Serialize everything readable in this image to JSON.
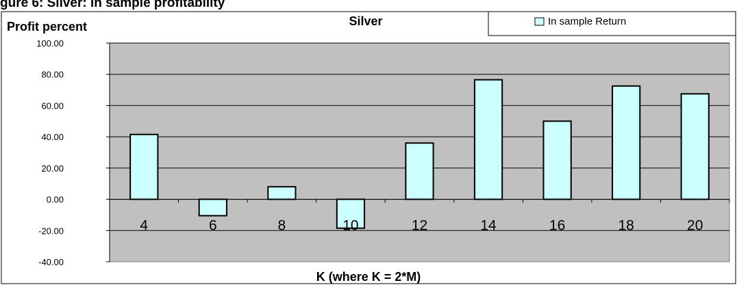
{
  "figure_caption_partial": "gure 6: Silver: In sample profitability",
  "chart_data": {
    "type": "bar",
    "title": "Silver",
    "ylabel": "Profit percent",
    "xlabel": "K (where K = 2*M)",
    "categories": [
      "4",
      "6",
      "8",
      "10",
      "12",
      "14",
      "16",
      "18",
      "20"
    ],
    "series": [
      {
        "name": "In sample Return",
        "values": [
          41.5,
          -10.5,
          8.0,
          -18.5,
          36.0,
          76.5,
          50.0,
          72.5,
          67.5
        ]
      }
    ],
    "ylim": [
      -40,
      100
    ],
    "yticks": [
      100,
      80,
      60,
      40,
      20,
      0,
      -20,
      -40
    ],
    "ytick_labels": [
      "100.00",
      "80.00",
      "60.00",
      "40.00",
      "20.00",
      "0.00",
      "-20.00",
      "-40.00"
    ],
    "grid": true,
    "legend_position": "top-right",
    "colors": {
      "bar_fill": "#ccffff",
      "bar_stroke": "#000000",
      "plot_background": "#c0c0c0",
      "gridline": "#000000",
      "text": "#000000"
    }
  }
}
